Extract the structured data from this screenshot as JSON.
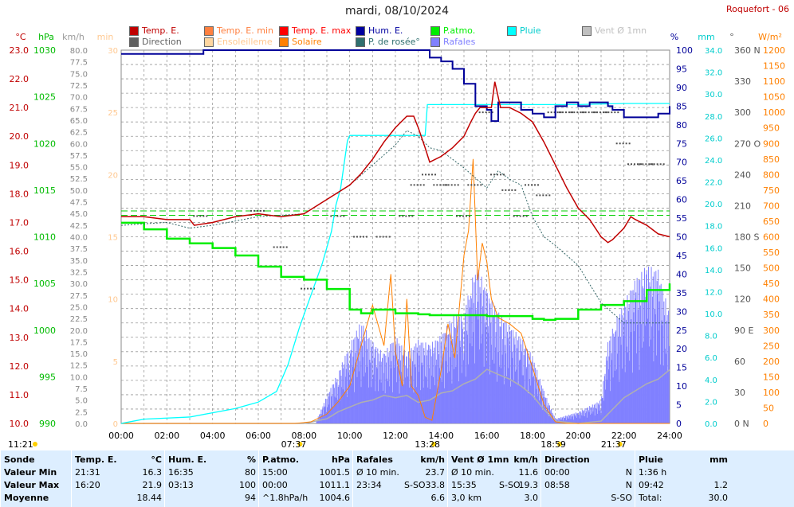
{
  "title": "mardi, 08/10/2024",
  "station": "Roquefort - 06",
  "colors": {
    "temp": "#c00000",
    "pressure": "#00cc00",
    "humidity": "#000099",
    "rain": "#00ffff",
    "dew": "#336666",
    "solar": "#ff8000",
    "sunshine": "#ffd6a0",
    "gust": "#8080ff",
    "wind": "#b0b0b0",
    "direction": "#505050",
    "grid": "#999999"
  },
  "legend": [
    {
      "label": "Temp. E.",
      "color": "#c00000"
    },
    {
      "label": "Temp. E. min",
      "color": "#ff8040"
    },
    {
      "label": "Temp. E. max",
      "color": "#ff0000"
    },
    {
      "label": "Hum. E.",
      "color": "#0000a0"
    },
    {
      "label": "P.atmo.",
      "color": "#00ee00"
    },
    {
      "label": "Pluie",
      "color": "#00ffff"
    },
    {
      "label": "Vent Ø 1mn",
      "color": "#c0c0c0"
    },
    {
      "label": "Direction",
      "color": "#606060"
    },
    {
      "label": "Ensoleilleme",
      "color": "#ffd6a0"
    },
    {
      "label": "Solaire",
      "color": "#ff8000"
    },
    {
      "label": "P. de rosée°",
      "color": "#2f6f6f"
    },
    {
      "label": "Rafales",
      "color": "#8080ff"
    }
  ],
  "units": {
    "temp": "°C",
    "pressure": "hPa",
    "wind": "km/h",
    "sun": "min",
    "humidity": "%",
    "rain": "mm",
    "direction": "°",
    "solar": "W/m²"
  },
  "axes": {
    "temp": {
      "min": 10.0,
      "max": 23.0,
      "ticks": [
        "23.0",
        "22.0",
        "21.0",
        "20.0",
        "19.0",
        "18.0",
        "17.0",
        "16.0",
        "15.0",
        "14.0",
        "13.0",
        "12.0",
        "11.0",
        "10.0"
      ]
    },
    "pressure": {
      "min": 990,
      "max": 1030,
      "ticks": [
        "1030",
        "1025",
        "1020",
        "1015",
        "1010",
        "1005",
        "1000",
        "995",
        "990"
      ]
    },
    "wind": {
      "min": 0,
      "max": 80,
      "ticks": [
        "80.0",
        "77.5",
        "75.0",
        "72.5",
        "70.0",
        "67.5",
        "65.0",
        "62.5",
        "60.0",
        "57.5",
        "55.0",
        "52.5",
        "50.0",
        "47.5",
        "45.0",
        "42.5",
        "40.0",
        "37.5",
        "35.0",
        "32.5",
        "30.0",
        "27.5",
        "25.0",
        "22.5",
        "20.0",
        "17.5",
        "15.0",
        "12.5",
        "10.0",
        "7.5",
        "5.0",
        "2.5",
        "0.0"
      ]
    },
    "sun": {
      "min": 0,
      "max": 30,
      "ticks": [
        "30",
        "25",
        "20",
        "15",
        "10",
        "5",
        "0"
      ]
    },
    "humidity": {
      "min": 0,
      "max": 100,
      "ticks": [
        "100",
        "95",
        "90",
        "85",
        "80",
        "75",
        "70",
        "65",
        "60",
        "55",
        "50",
        "45",
        "40",
        "35",
        "30",
        "25",
        "20",
        "15",
        "10",
        "5",
        "0"
      ]
    },
    "rain": {
      "min": 0,
      "max": 35,
      "ticks": [
        "34.0",
        "32.0",
        "30.0",
        "28.0",
        "26.0",
        "24.0",
        "22.0",
        "20.0",
        "18.0",
        "16.0",
        "14.0",
        "12.0",
        "10.0",
        "8.0",
        "6.0",
        "4.0",
        "2.0",
        "0.0"
      ]
    },
    "direction": {
      "min": 0,
      "max": 360,
      "ticks": [
        "360 N",
        "330",
        "300",
        "270 O",
        "240",
        "210",
        "180 S",
        "150",
        "120",
        "90 E",
        "60",
        "30",
        "0 N"
      ]
    },
    "solar": {
      "min": 0,
      "max": 1200,
      "ticks": [
        "1200",
        "1150",
        "1100",
        "1050",
        "1000",
        "950",
        "900",
        "850",
        "800",
        "750",
        "700",
        "650",
        "600",
        "550",
        "500",
        "450",
        "400",
        "350",
        "300",
        "250",
        "200",
        "150",
        "100",
        "50",
        "0"
      ]
    },
    "time": {
      "min": 0,
      "max": 24,
      "ticks": [
        "00:00",
        "02:00",
        "04:00",
        "06:00",
        "08:00",
        "10:00",
        "12:00",
        "14:00",
        "16:00",
        "18:00",
        "20:00",
        "22:00",
        "24:00"
      ]
    }
  },
  "sun_events": [
    {
      "hour": 7.62,
      "label": "07:37"
    },
    {
      "hour": 13.47,
      "label": "13:28"
    },
    {
      "hour": 18.98,
      "label": "18:59"
    },
    {
      "hour": 21.62,
      "label": "21:37"
    }
  ],
  "moon_left": "11:21",
  "reference_lines": [
    {
      "temp": 17.4,
      "color": "#00cc00"
    },
    {
      "temp": 17.25,
      "color": "#00cc00"
    }
  ],
  "chart_data": {
    "type": "line",
    "x_unit": "hour",
    "series": [
      {
        "name": "Temp. E.",
        "axis": "temp",
        "x": [
          0,
          1,
          2,
          3,
          3.2,
          4,
          5,
          6,
          7,
          8,
          9,
          10,
          10.5,
          11,
          11.5,
          12,
          12.5,
          12.8,
          13,
          13.3,
          13.5,
          14,
          14.5,
          15,
          15.3,
          15.5,
          15.7,
          16,
          16.2,
          16.35,
          16.6,
          17,
          17.5,
          18,
          18.5,
          19,
          19.5,
          20,
          20.5,
          21,
          21.3,
          21.5,
          22,
          22.3,
          22.5,
          23,
          23.5,
          24
        ],
        "y": [
          17.2,
          17.2,
          17.1,
          17.1,
          16.9,
          17.0,
          17.2,
          17.3,
          17.2,
          17.3,
          17.8,
          18.3,
          18.7,
          19.2,
          19.8,
          20.3,
          20.7,
          20.7,
          20.3,
          19.6,
          19.1,
          19.3,
          19.6,
          20.0,
          20.5,
          20.8,
          21.0,
          21.0,
          21.0,
          21.9,
          21.0,
          21.0,
          20.8,
          20.5,
          19.8,
          19.0,
          18.2,
          17.5,
          17.1,
          16.5,
          16.3,
          16.4,
          16.8,
          17.2,
          17.1,
          16.9,
          16.6,
          16.5
        ]
      },
      {
        "name": "P. de rosée°",
        "axis": "temp",
        "x": [
          0,
          2,
          3,
          4,
          6,
          8,
          9,
          10,
          11,
          12,
          12.5,
          13,
          13.5,
          14,
          15,
          16,
          16.5,
          17,
          17.5,
          18,
          18.5,
          19,
          20,
          21,
          22,
          23,
          24
        ],
        "y": [
          16.9,
          17.0,
          16.8,
          16.9,
          17.2,
          17.3,
          17.8,
          18.3,
          19.0,
          19.7,
          20.2,
          20.0,
          19.6,
          19.5,
          18.9,
          18.2,
          18.8,
          18.5,
          18.3,
          17.2,
          16.5,
          16.2,
          15.5,
          14.2,
          13.5,
          13.5,
          13.5
        ]
      },
      {
        "name": "Hum. E.",
        "axis": "humidity",
        "x": [
          0,
          3.5,
          3.6,
          13,
          13.5,
          14,
          14.5,
          15,
          15.5,
          16,
          16.2,
          16.5,
          17,
          17.5,
          18,
          18.5,
          19,
          19.5,
          20,
          20.5,
          21,
          21.3,
          21.5,
          22,
          23,
          23.5,
          24
        ],
        "y": [
          99,
          99,
          100,
          100,
          98,
          97,
          95,
          91,
          85,
          84,
          81,
          86,
          86,
          84,
          83,
          82,
          85,
          86,
          85,
          86,
          86,
          85,
          84,
          82,
          82,
          83,
          85
        ]
      },
      {
        "name": "P.atmo.",
        "axis": "pressure",
        "x": [
          0,
          1,
          2,
          3,
          4,
          5,
          6,
          7,
          8,
          9,
          10,
          10.5,
          11,
          11.5,
          12,
          12.5,
          13,
          13.5,
          14,
          15,
          16,
          17,
          18,
          18.5,
          19,
          20,
          21,
          22,
          23,
          24
        ],
        "y": [
          1011.5,
          1010.8,
          1009.8,
          1009.3,
          1008.8,
          1008.0,
          1006.8,
          1005.7,
          1005.4,
          1004.4,
          1002.2,
          1001.8,
          1002.2,
          1002.2,
          1001.8,
          1001.8,
          1001.7,
          1001.6,
          1001.6,
          1001.6,
          1001.5,
          1001.5,
          1001.2,
          1001.1,
          1001.2,
          1002.2,
          1002.7,
          1003.1,
          1004.3,
          1005.0
        ]
      },
      {
        "name": "Pluie",
        "axis": "rain",
        "x": [
          0,
          0.5,
          1,
          3,
          4,
          5,
          6,
          6.8,
          7.3,
          7.8,
          8.3,
          8.8,
          9.2,
          9.4,
          9.6,
          9.8,
          9.9,
          10.0,
          10.2,
          12,
          12.5,
          13.3,
          13.4,
          14,
          16,
          20,
          22,
          24
        ],
        "y": [
          0,
          0.2,
          0.4,
          0.6,
          1.0,
          1.4,
          2.0,
          3.0,
          5.5,
          9.0,
          12.0,
          15.0,
          18.0,
          20.5,
          22.0,
          25.0,
          26.5,
          27.0,
          27.0,
          27.0,
          27.0,
          27.0,
          29.9,
          29.9,
          29.9,
          29.9,
          30.0,
          30.0
        ]
      },
      {
        "name": "Vent Ø 1mn",
        "axis": "wind",
        "x": [
          0,
          8,
          9,
          9.5,
          10,
          10.5,
          11,
          11.5,
          12,
          12.5,
          13,
          13.5,
          14,
          14.5,
          15,
          15.5,
          16,
          16.5,
          17,
          17.5,
          18,
          18.5,
          19,
          20,
          21,
          21.5,
          22,
          22.5,
          23,
          23.5,
          24
        ],
        "y": [
          0,
          0,
          1.0,
          2.5,
          3.5,
          4.5,
          5.0,
          6.0,
          5.5,
          6.0,
          4.5,
          5.0,
          6.5,
          7.0,
          8.5,
          9.5,
          11.6,
          10.5,
          9.5,
          8.0,
          6.0,
          3.0,
          0.5,
          0,
          0.5,
          3.0,
          5.5,
          7.0,
          8.5,
          9.5,
          11.5
        ]
      },
      {
        "name": "Rafales",
        "axis": "wind",
        "x": [
          0,
          8.5,
          9,
          9.5,
          10,
          10.5,
          11,
          11.5,
          12,
          12.5,
          13,
          13.5,
          14,
          14.5,
          15,
          15.3,
          15.6,
          16,
          16.5,
          17,
          17.5,
          18,
          18.5,
          19,
          20,
          21,
          21.3,
          21.6,
          22,
          22.5,
          23,
          23.5,
          24
        ],
        "y": [
          0,
          0,
          6.0,
          11.0,
          17.0,
          22.0,
          17.5,
          15.0,
          19.0,
          15.0,
          18.0,
          17.0,
          19.0,
          23.0,
          24.0,
          30.5,
          33.8,
          28.5,
          24.0,
          21.0,
          18.5,
          14.5,
          7.0,
          1.0,
          2.5,
          5.0,
          17.5,
          22.0,
          26.0,
          31.0,
          34.0,
          33.0,
          23.5
        ]
      },
      {
        "name": "Solaire",
        "axis": "solar",
        "x": [
          0,
          7.6,
          8.3,
          9,
          9.5,
          10,
          10.5,
          11,
          11.5,
          11.8,
          12,
          12.3,
          12.5,
          12.7,
          13,
          13.3,
          13.6,
          14,
          14.3,
          14.6,
          15,
          15.2,
          15.4,
          15.6,
          15.8,
          16,
          16.2,
          16.5,
          17,
          17.5,
          18,
          18.5,
          19,
          19.5,
          24
        ],
        "y": [
          0,
          0,
          5,
          30,
          70,
          120,
          250,
          380,
          250,
          480,
          230,
          120,
          400,
          120,
          90,
          20,
          10,
          170,
          320,
          210,
          540,
          620,
          850,
          460,
          580,
          520,
          400,
          340,
          320,
          290,
          180,
          60,
          5,
          0,
          0
        ]
      },
      {
        "name": "Ensoleilleme",
        "axis": "sun",
        "x": [
          0,
          11.6,
          11.7,
          12.5,
          12.6,
          13.2,
          13.3,
          14.6,
          14.7,
          18.6,
          18.7,
          24
        ],
        "y": [
          0,
          0,
          1,
          1,
          0,
          0,
          1,
          1,
          1,
          1,
          0,
          0
        ]
      }
    ],
    "direction_points": {
      "x": [
        3.5,
        6,
        7,
        8.2,
        9.5,
        10.5,
        11.5,
        12.5,
        13,
        13.5,
        14,
        14.5,
        15,
        15.5,
        16,
        16.5,
        17,
        17.5,
        18,
        18.5,
        19,
        19.5,
        20,
        20.5,
        21,
        21.5,
        22,
        22.5,
        23,
        23.5
      ],
      "y": [
        200,
        205,
        170,
        130,
        200,
        180,
        180,
        200,
        230,
        240,
        230,
        230,
        200,
        230,
        300,
        240,
        225,
        200,
        230,
        220,
        300,
        300,
        300,
        300,
        300,
        300,
        270,
        250,
        250,
        250
      ]
    },
    "ylim_temp": [
      10,
      23
    ],
    "grid": true,
    "legend_position": "top"
  },
  "stats": [
    {
      "header": [
        "Sonde",
        ""
      ],
      "rows": [
        [
          "Valeur Min",
          "",
          ""
        ],
        [
          "Valeur Max",
          "",
          ""
        ],
        [
          "Moyenne",
          "",
          ""
        ]
      ]
    },
    {
      "header": [
        "Temp. E.",
        "°C"
      ],
      "rows": [
        [
          "21:31",
          "",
          "16.3"
        ],
        [
          "16:20",
          "",
          "21.9"
        ],
        [
          "",
          "",
          "18.44"
        ]
      ]
    },
    {
      "header": [
        "Hum. E.",
        "%"
      ],
      "rows": [
        [
          "16:35",
          "",
          "80"
        ],
        [
          "03:13",
          "",
          "100"
        ],
        [
          "",
          "",
          "94"
        ]
      ]
    },
    {
      "header": [
        "P.atmo.",
        "hPa"
      ],
      "rows": [
        [
          "15:00",
          "",
          "1001.5"
        ],
        [
          "00:00",
          "",
          "1011.1"
        ],
        [
          "^1.8hPa/h",
          "",
          "1004.6"
        ]
      ]
    },
    {
      "header": [
        "Rafales",
        "km/h"
      ],
      "rows": [
        [
          "Ø 10 min.",
          "",
          "23.7"
        ],
        [
          "23:34",
          "S-SO",
          "33.8"
        ],
        [
          "",
          "",
          "6.6"
        ]
      ]
    },
    {
      "header": [
        "Vent Ø 1mn",
        "km/h"
      ],
      "rows": [
        [
          "Ø 10 min.",
          "",
          "11.6"
        ],
        [
          "15:35",
          "S-SO",
          "19.3"
        ],
        [
          "3,0 km",
          "",
          "3.0"
        ]
      ]
    },
    {
      "header": [
        "Direction",
        ""
      ],
      "rows": [
        [
          "00:00",
          "",
          "N"
        ],
        [
          "08:58",
          "",
          "N"
        ],
        [
          "",
          "",
          "S-SO"
        ]
      ]
    },
    {
      "header": [
        "Pluie",
        "mm"
      ],
      "rows": [
        [
          "1:36 h",
          "",
          ""
        ],
        [
          "09:42",
          "",
          "1.2"
        ],
        [
          "Total:",
          "",
          "30.0"
        ]
      ]
    }
  ]
}
